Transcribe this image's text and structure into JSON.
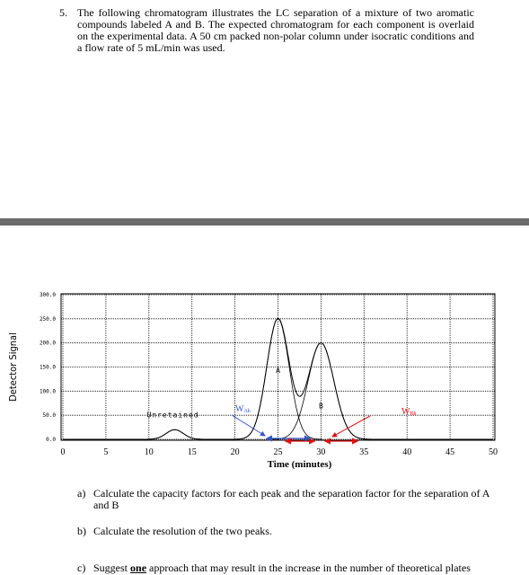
{
  "question": {
    "number": "5.",
    "text": "The following chromatogram illustrates the LC separation of a mixture of two aromatic compounds labeled A and B. The expected chromatogram for each component is overlaid on the experimental data. A 50 cm packed non-polar column under isocratic conditions and a flow rate of 5 mL/min was used."
  },
  "chart_data": {
    "type": "chromatogram",
    "x_label": "Time (minutes)",
    "y_label": "Detector Signal",
    "xlim": [
      0,
      50
    ],
    "ylim": [
      0,
      300
    ],
    "xticks": [
      0,
      5,
      10,
      15,
      20,
      25,
      30,
      35,
      40,
      45,
      50
    ],
    "yticks": [
      {
        "value": 0,
        "label": "0.0"
      },
      {
        "value": 50,
        "label": "50.0"
      },
      {
        "value": 100,
        "label": "100.0"
      },
      {
        "value": 150,
        "label": "150.0"
      },
      {
        "value": 200,
        "label": "200.0"
      },
      {
        "value": 250,
        "label": "250.0"
      },
      {
        "value": 300,
        "label": "300.0"
      }
    ],
    "grid": true,
    "color": "#000000",
    "peaks": [
      {
        "name": "Unretained",
        "time": 13,
        "height": 20,
        "width": 1.0
      },
      {
        "name": "A",
        "time": 25,
        "height": 250,
        "width": 1.3
      },
      {
        "name": "B",
        "time": 30,
        "height": 200,
        "width": 1.5
      }
    ],
    "annotations": [
      {
        "main": "W",
        "sub": "Ah",
        "color": "#3355cc"
      },
      {
        "main": "W",
        "sub": "Bh",
        "color": "#dd1111"
      }
    ]
  },
  "parts": [
    {
      "label": "a)",
      "text": [
        "Calculate the capacity factors for each peak and the separation factor for the separation of A and B"
      ]
    },
    {
      "label": "b)",
      "text": [
        "Calculate the resolution of the two peaks."
      ]
    },
    {
      "label": "c)",
      "text": [
        "Suggest ",
        "one",
        " approach that may result in the increase in the number of theoretical plates"
      ]
    }
  ]
}
